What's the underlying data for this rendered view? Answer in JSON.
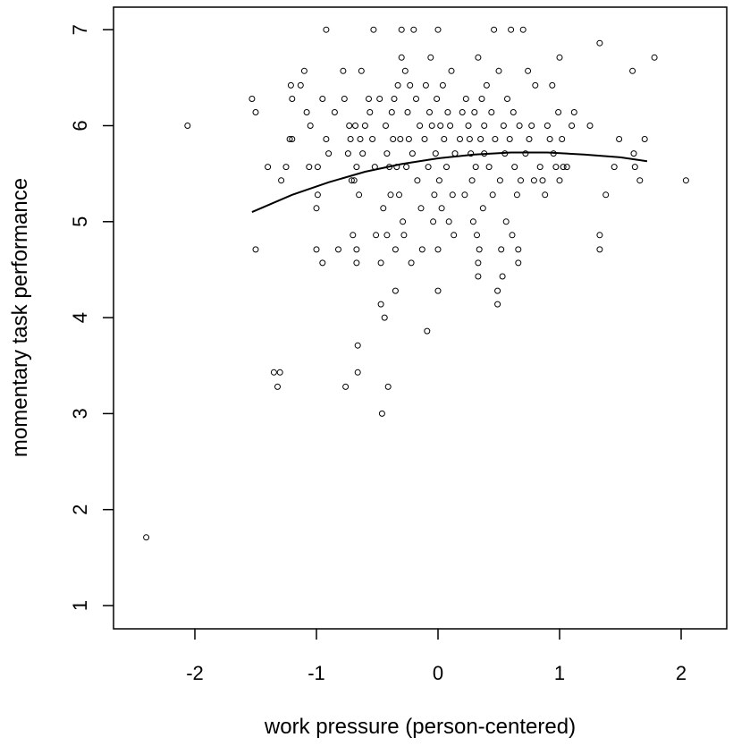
{
  "chart_data": {
    "type": "scatter",
    "xlabel": "work pressure (person-centered)",
    "ylabel": "momentary task performance",
    "xlim": [
      -2.6,
      2.35
    ],
    "ylim": [
      0.8,
      7.2
    ],
    "xticks": [
      -2,
      -1,
      0,
      1,
      2
    ],
    "yticks": [
      1,
      2,
      3,
      4,
      5,
      6,
      7
    ],
    "grid": false,
    "legend": "none",
    "points": [
      [
        -2.4,
        1.71
      ],
      [
        -2.06,
        6.0
      ],
      [
        -1.53,
        6.28
      ],
      [
        -1.5,
        6.14
      ],
      [
        -1.5,
        4.71
      ],
      [
        -1.4,
        5.57
      ],
      [
        -1.35,
        3.43
      ],
      [
        -1.32,
        3.28
      ],
      [
        -1.3,
        3.43
      ],
      [
        -1.29,
        5.43
      ],
      [
        -1.25,
        5.57
      ],
      [
        -1.22,
        5.86
      ],
      [
        -1.21,
        6.42
      ],
      [
        -1.2,
        6.28
      ],
      [
        -1.2,
        5.86
      ],
      [
        -1.13,
        6.42
      ],
      [
        -1.1,
        6.57
      ],
      [
        -1.08,
        6.14
      ],
      [
        -1.06,
        5.57
      ],
      [
        -1.05,
        6.0
      ],
      [
        -1.0,
        5.14
      ],
      [
        -0.99,
        5.28
      ],
      [
        -1.0,
        4.71
      ],
      [
        -0.99,
        5.57
      ],
      [
        -0.95,
        4.57
      ],
      [
        -0.95,
        6.28
      ],
      [
        -0.92,
        5.86
      ],
      [
        -0.92,
        7.0
      ],
      [
        -0.9,
        5.71
      ],
      [
        -0.85,
        6.14
      ],
      [
        -0.82,
        4.71
      ],
      [
        -0.78,
        6.57
      ],
      [
        -0.77,
        6.28
      ],
      [
        -0.76,
        3.28
      ],
      [
        -0.74,
        5.71
      ],
      [
        -0.73,
        6.0
      ],
      [
        -0.72,
        5.86
      ],
      [
        -0.71,
        5.43
      ],
      [
        -0.7,
        4.86
      ],
      [
        -0.69,
        5.43
      ],
      [
        -0.68,
        6.0
      ],
      [
        -0.67,
        5.57
      ],
      [
        -0.67,
        4.57
      ],
      [
        -0.66,
        3.71
      ],
      [
        -0.66,
        3.43
      ],
      [
        -0.67,
        4.71
      ],
      [
        -0.65,
        5.28
      ],
      [
        -0.64,
        5.86
      ],
      [
        -0.63,
        6.57
      ],
      [
        -0.62,
        5.71
      ],
      [
        -0.6,
        6.0
      ],
      [
        -0.57,
        6.28
      ],
      [
        -0.56,
        6.14
      ],
      [
        -0.54,
        5.86
      ],
      [
        -0.53,
        7.0
      ],
      [
        -0.52,
        5.57
      ],
      [
        -0.51,
        4.86
      ],
      [
        -0.48,
        6.28
      ],
      [
        -0.47,
        4.57
      ],
      [
        -0.47,
        4.14
      ],
      [
        -0.46,
        3.0
      ],
      [
        -0.45,
        5.14
      ],
      [
        -0.44,
        4.0
      ],
      [
        -0.43,
        6.0
      ],
      [
        -0.42,
        5.71
      ],
      [
        -0.42,
        4.86
      ],
      [
        -0.41,
        3.28
      ],
      [
        -0.4,
        5.57
      ],
      [
        -0.39,
        5.28
      ],
      [
        -0.38,
        6.14
      ],
      [
        -0.37,
        5.86
      ],
      [
        -0.36,
        6.28
      ],
      [
        -0.35,
        4.71
      ],
      [
        -0.35,
        4.28
      ],
      [
        -0.34,
        5.57
      ],
      [
        -0.33,
        6.42
      ],
      [
        -0.32,
        5.28
      ],
      [
        -0.31,
        5.86
      ],
      [
        -0.3,
        6.71
      ],
      [
        -0.3,
        7.0
      ],
      [
        -0.29,
        5.0
      ],
      [
        -0.28,
        4.86
      ],
      [
        -0.27,
        6.57
      ],
      [
        -0.26,
        5.57
      ],
      [
        -0.25,
        6.14
      ],
      [
        -0.24,
        5.86
      ],
      [
        -0.23,
        6.42
      ],
      [
        -0.22,
        4.57
      ],
      [
        -0.21,
        5.71
      ],
      [
        -0.2,
        7.0
      ],
      [
        -0.18,
        6.28
      ],
      [
        -0.17,
        5.43
      ],
      [
        -0.15,
        6.0
      ],
      [
        -0.14,
        5.14
      ],
      [
        -0.13,
        4.71
      ],
      [
        -0.11,
        5.86
      ],
      [
        -0.1,
        6.42
      ],
      [
        -0.09,
        3.86
      ],
      [
        -0.08,
        5.57
      ],
      [
        -0.07,
        6.14
      ],
      [
        -0.06,
        6.71
      ],
      [
        -0.05,
        6.0
      ],
      [
        -0.04,
        5.0
      ],
      [
        -0.03,
        5.28
      ],
      [
        -0.02,
        5.71
      ],
      [
        -0.01,
        6.28
      ],
      [
        0.0,
        7.0
      ],
      [
        0.0,
        4.71
      ],
      [
        0.0,
        4.28
      ],
      [
        0.01,
        5.43
      ],
      [
        0.02,
        6.0
      ],
      [
        0.03,
        5.14
      ],
      [
        0.04,
        6.42
      ],
      [
        0.05,
        5.86
      ],
      [
        0.07,
        5.57
      ],
      [
        0.08,
        6.14
      ],
      [
        0.09,
        5.0
      ],
      [
        0.1,
        6.0
      ],
      [
        0.11,
        6.57
      ],
      [
        0.12,
        5.28
      ],
      [
        0.13,
        4.86
      ],
      [
        0.14,
        5.71
      ],
      [
        0.18,
        5.86
      ],
      [
        0.2,
        6.14
      ],
      [
        0.22,
        5.28
      ],
      [
        0.23,
        6.28
      ],
      [
        0.25,
        6.0
      ],
      [
        0.26,
        5.86
      ],
      [
        0.27,
        5.71
      ],
      [
        0.28,
        5.43
      ],
      [
        0.29,
        5.0
      ],
      [
        0.3,
        6.14
      ],
      [
        0.31,
        5.57
      ],
      [
        0.32,
        4.86
      ],
      [
        0.33,
        6.71
      ],
      [
        0.33,
        4.57
      ],
      [
        0.33,
        4.43
      ],
      [
        0.34,
        4.71
      ],
      [
        0.35,
        5.86
      ],
      [
        0.36,
        6.28
      ],
      [
        0.37,
        5.14
      ],
      [
        0.38,
        6.0
      ],
      [
        0.38,
        5.71
      ],
      [
        0.4,
        6.42
      ],
      [
        0.42,
        5.57
      ],
      [
        0.44,
        6.14
      ],
      [
        0.45,
        5.28
      ],
      [
        0.46,
        7.0
      ],
      [
        0.47,
        5.86
      ],
      [
        0.49,
        4.28
      ],
      [
        0.49,
        4.14
      ],
      [
        0.5,
        6.57
      ],
      [
        0.51,
        5.43
      ],
      [
        0.52,
        4.71
      ],
      [
        0.53,
        4.43
      ],
      [
        0.54,
        6.0
      ],
      [
        0.55,
        5.71
      ],
      [
        0.56,
        5.0
      ],
      [
        0.57,
        6.28
      ],
      [
        0.59,
        5.86
      ],
      [
        0.6,
        7.0
      ],
      [
        0.61,
        4.86
      ],
      [
        0.62,
        6.14
      ],
      [
        0.63,
        5.57
      ],
      [
        0.65,
        5.28
      ],
      [
        0.66,
        4.71
      ],
      [
        0.66,
        4.57
      ],
      [
        0.67,
        6.0
      ],
      [
        0.68,
        5.43
      ],
      [
        0.7,
        7.0
      ],
      [
        0.72,
        5.71
      ],
      [
        0.74,
        6.57
      ],
      [
        0.75,
        5.86
      ],
      [
        0.77,
        6.0
      ],
      [
        0.79,
        5.43
      ],
      [
        0.8,
        6.42
      ],
      [
        0.84,
        5.57
      ],
      [
        0.86,
        5.43
      ],
      [
        0.88,
        5.28
      ],
      [
        0.9,
        6.0
      ],
      [
        0.92,
        5.86
      ],
      [
        0.94,
        6.42
      ],
      [
        0.95,
        5.71
      ],
      [
        0.97,
        5.57
      ],
      [
        0.99,
        6.14
      ],
      [
        1.0,
        5.43
      ],
      [
        1.0,
        6.71
      ],
      [
        1.02,
        5.86
      ],
      [
        1.03,
        5.57
      ],
      [
        1.06,
        5.57
      ],
      [
        1.1,
        6.0
      ],
      [
        1.12,
        6.14
      ],
      [
        1.25,
        6.0
      ],
      [
        1.33,
        6.86
      ],
      [
        1.33,
        4.86
      ],
      [
        1.33,
        4.71
      ],
      [
        1.38,
        5.28
      ],
      [
        1.45,
        5.57
      ],
      [
        1.49,
        5.86
      ],
      [
        1.6,
        6.57
      ],
      [
        1.61,
        5.71
      ],
      [
        1.62,
        5.57
      ],
      [
        1.66,
        5.43
      ],
      [
        1.7,
        5.86
      ],
      [
        1.78,
        6.71
      ],
      [
        2.04,
        5.43
      ]
    ],
    "fit_line": {
      "x": [
        -1.53,
        -1.2,
        -0.9,
        -0.6,
        -0.3,
        0.0,
        0.3,
        0.6,
        0.9,
        1.2,
        1.5,
        1.72
      ],
      "y": [
        5.1,
        5.28,
        5.41,
        5.52,
        5.6,
        5.66,
        5.7,
        5.72,
        5.72,
        5.7,
        5.67,
        5.63
      ]
    }
  }
}
